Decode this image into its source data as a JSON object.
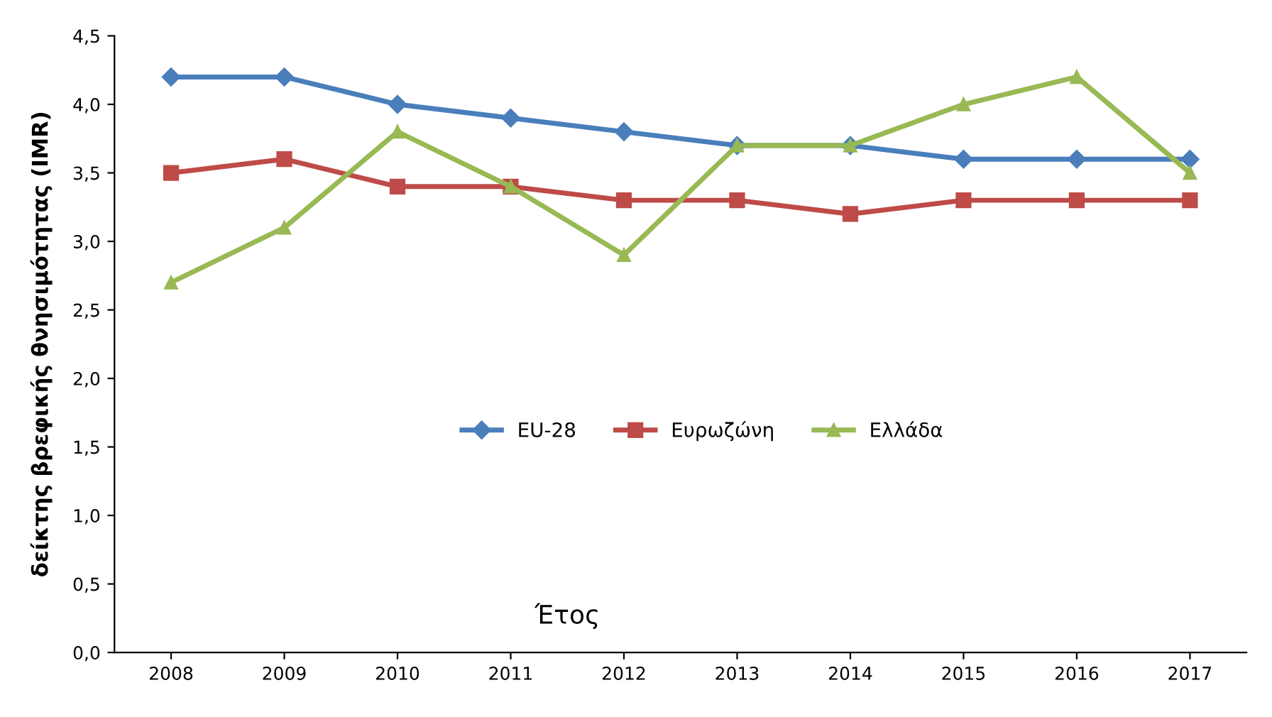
{
  "chart_data": {
    "type": "line",
    "xlabel": "Έτος",
    "ylabel": "δείκτης βρεφικής θνησιμότητας (IMR)",
    "categories": [
      "2008",
      "2009",
      "2010",
      "2011",
      "2012",
      "2013",
      "2014",
      "2015",
      "2016",
      "2017"
    ],
    "series": [
      {
        "name": "EU-28",
        "color": "#4a7ebb",
        "marker": "diamond",
        "values": [
          4.2,
          4.2,
          4.0,
          3.9,
          3.8,
          3.7,
          3.7,
          3.6,
          3.6,
          3.6
        ]
      },
      {
        "name": "Ευρωζώνη",
        "color": "#be4b48",
        "marker": "square",
        "values": [
          3.5,
          3.6,
          3.4,
          3.4,
          3.3,
          3.3,
          3.2,
          3.3,
          3.3,
          3.3
        ]
      },
      {
        "name": "Ελλάδα",
        "color": "#98b954",
        "marker": "triangle",
        "values": [
          2.7,
          3.1,
          3.8,
          3.4,
          2.9,
          3.7,
          3.7,
          4.0,
          4.2,
          3.5
        ]
      }
    ],
    "ylim": [
      0,
      4.5
    ],
    "yticks": [
      {
        "value": 0,
        "label": "0,0"
      },
      {
        "value": 0.5,
        "label": "0,5"
      },
      {
        "value": 1,
        "label": "1,0"
      },
      {
        "value": 1.5,
        "label": "1,5"
      },
      {
        "value": 2,
        "label": "2,0"
      },
      {
        "value": 2.5,
        "label": "2,5"
      },
      {
        "value": 3,
        "label": "3,0"
      },
      {
        "value": 3.5,
        "label": "3,5"
      },
      {
        "value": 4,
        "label": "4,0"
      },
      {
        "value": 4.5,
        "label": "4,5"
      }
    ],
    "grid": false,
    "legend": "center",
    "line_style": "solid"
  }
}
